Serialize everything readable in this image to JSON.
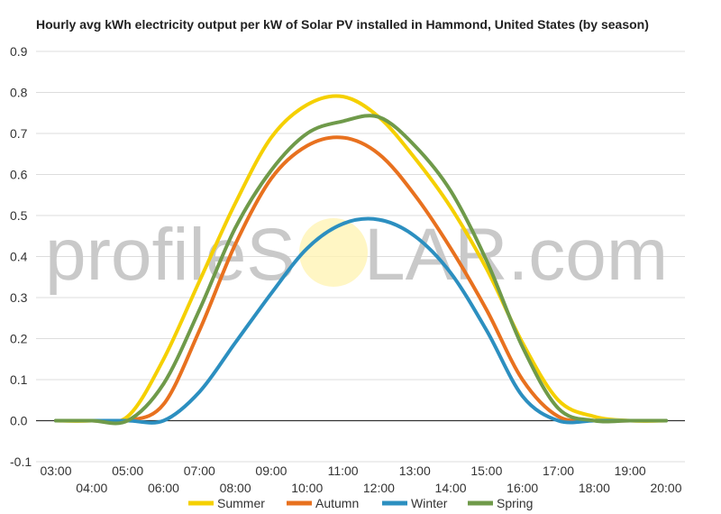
{
  "chart_data": {
    "type": "line",
    "title": "Hourly avg kWh electricity output per kW of Solar PV installed in Hammond, United States (by season)",
    "xlabel": "",
    "ylabel": "",
    "x": [
      "03:00",
      "04:00",
      "05:00",
      "06:00",
      "07:00",
      "08:00",
      "09:00",
      "10:00",
      "11:00",
      "12:00",
      "13:00",
      "14:00",
      "15:00",
      "16:00",
      "17:00",
      "18:00",
      "19:00",
      "20:00"
    ],
    "ylim": [
      -0.1,
      0.9
    ],
    "yticks": [
      "-0.1",
      "0.0",
      "0.1",
      "0.2",
      "0.3",
      "0.4",
      "0.5",
      "0.6",
      "0.7",
      "0.8",
      "0.9"
    ],
    "grid": true,
    "legend_position": "bottom",
    "series": [
      {
        "name": "Summer",
        "color": "#f5d000",
        "values": [
          0.0,
          0.0,
          0.01,
          0.15,
          0.34,
          0.53,
          0.69,
          0.77,
          0.79,
          0.74,
          0.64,
          0.52,
          0.37,
          0.19,
          0.05,
          0.01,
          0.0,
          0.0
        ]
      },
      {
        "name": "Autumn",
        "color": "#e8711f",
        "values": [
          0.0,
          0.0,
          0.0,
          0.04,
          0.22,
          0.43,
          0.59,
          0.67,
          0.69,
          0.65,
          0.55,
          0.42,
          0.27,
          0.1,
          0.01,
          0.0,
          0.0,
          0.0
        ]
      },
      {
        "name": "Winter",
        "color": "#2c8fc0",
        "values": [
          0.0,
          0.0,
          0.0,
          0.0,
          0.07,
          0.19,
          0.31,
          0.42,
          0.48,
          0.49,
          0.45,
          0.36,
          0.22,
          0.06,
          0.0,
          0.0,
          0.0,
          0.0
        ]
      },
      {
        "name": "Spring",
        "color": "#6f9a4a",
        "values": [
          0.0,
          0.0,
          0.0,
          0.09,
          0.27,
          0.47,
          0.61,
          0.7,
          0.73,
          0.74,
          0.67,
          0.56,
          0.39,
          0.18,
          0.03,
          0.0,
          0.0,
          0.0
        ]
      }
    ]
  },
  "watermark": {
    "text_left": "profileS",
    "text_right": "LAR.com",
    "sun_color": "#fff3b0"
  }
}
